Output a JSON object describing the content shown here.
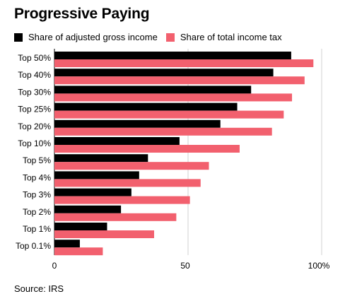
{
  "title": "Progressive Paying",
  "source": "Source: IRS",
  "colors": {
    "agi": "#000000",
    "tax": "#f2606e",
    "grid": "#d0d0d0"
  },
  "chart_data": {
    "type": "bar",
    "orientation": "horizontal",
    "categories": [
      "Top 50%",
      "Top 40%",
      "Top 30%",
      "Top 25%",
      "Top 20%",
      "Top 10%",
      "Top 5%",
      "Top 4%",
      "Top 3%",
      "Top 2%",
      "Top 1%",
      "Top 0.1%"
    ],
    "series": [
      {
        "name": "Share of adjusted gross income",
        "values": [
          88.6,
          81.9,
          73.6,
          68.4,
          62.1,
          46.8,
          35.0,
          31.7,
          28.8,
          24.9,
          19.7,
          9.5
        ]
      },
      {
        "name": "Share of total income tax",
        "values": [
          96.9,
          93.6,
          88.9,
          85.8,
          81.4,
          69.3,
          57.8,
          54.7,
          50.7,
          45.6,
          37.3,
          18.1
        ]
      }
    ],
    "xlim": [
      0,
      100
    ],
    "xticks": [
      0,
      50,
      100
    ],
    "xtick_labels": [
      "0",
      "50",
      "100%"
    ],
    "grid": true,
    "legend_position": "top-left"
  }
}
